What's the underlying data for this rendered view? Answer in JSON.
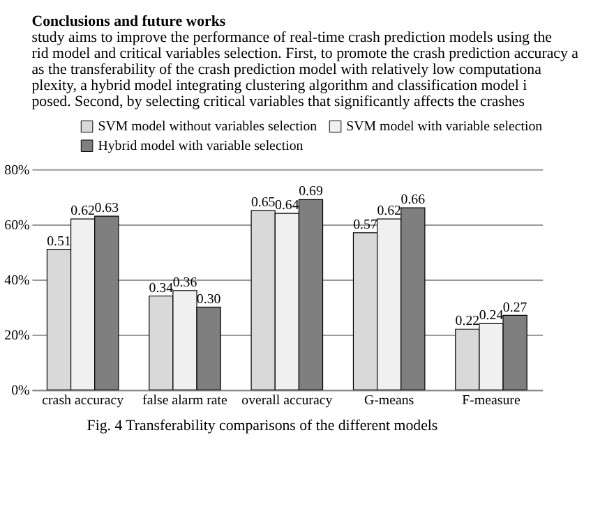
{
  "chart_data": {
    "type": "bar",
    "categories": [
      "crash accuracy",
      "false alarm rate",
      "overall accuracy",
      "G-means",
      "F-measure"
    ],
    "series": [
      {
        "name": "SVM model without variables selection",
        "color": "#d9d9d9",
        "values": [
          0.51,
          0.34,
          0.65,
          0.57,
          0.22
        ],
        "value_labels": [
          "0.51",
          "0.34",
          "0.65",
          "0.57",
          "0.22"
        ]
      },
      {
        "name": "SVM model with variable selection",
        "color": "#f0f0f0",
        "values": [
          0.62,
          0.36,
          0.64,
          0.62,
          0.24
        ],
        "value_labels": [
          "0.62",
          "0.36",
          "0.64",
          "0.62",
          "0.24"
        ]
      },
      {
        "name": "Hybrid model with variable selection",
        "color": "#7f7f7f",
        "values": [
          0.63,
          0.3,
          0.69,
          0.66,
          0.27
        ],
        "value_labels": [
          "0.63",
          "0.30",
          "0.69",
          "0.66",
          "0.27"
        ]
      }
    ],
    "ylim": [
      0,
      0.8
    ],
    "yticks": [
      {
        "value": 0,
        "label": "0%"
      },
      {
        "value": 0.2,
        "label": "20%"
      },
      {
        "value": 0.4,
        "label": "40%"
      },
      {
        "value": 0.6,
        "label": "60%"
      },
      {
        "value": 0.8,
        "label": "80%"
      }
    ],
    "grid": "y",
    "legend": "top",
    "annotations": [
      "Conclusions and future works",
      "study aims to improve the performance of real-time crash prediction models using the",
      "rid model and critical variables selection. First, to promote the crash prediction accuracy a",
      "as the transferability of the crash prediction model with relatively low computationa",
      "plexity, a hybrid model integrating clustering algorithm and classification model i",
      "posed. Second, by selecting critical variables that significantly affects the crashes",
      "Fig. 4 Transferability comparisons of the different models"
    ]
  }
}
